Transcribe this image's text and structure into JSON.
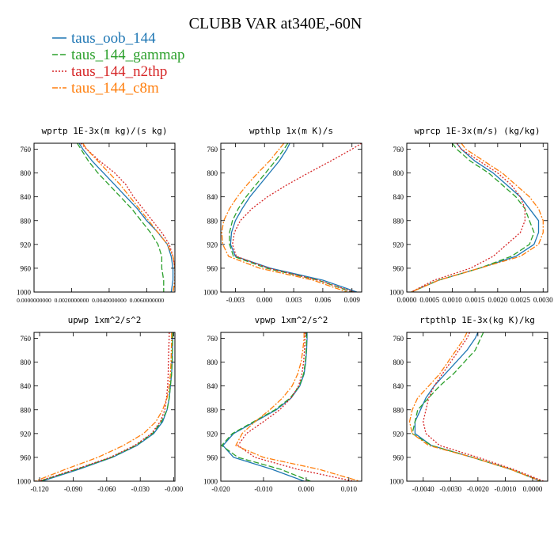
{
  "figure": {
    "title": "CLUBB VAR at340E,-60N"
  },
  "legend": {
    "entries": [
      {
        "label": "taus_oob_144",
        "color": "#1f77b4",
        "dash": "solid"
      },
      {
        "label": "taus_144_gammap",
        "color": "#2ca02c",
        "dash": "dash"
      },
      {
        "label": "taus_144_n2thp",
        "color": "#d62728",
        "dash": "dot"
      },
      {
        "label": "taus_144_c8m",
        "color": "#ff7f0e",
        "dash": "dashdot"
      }
    ]
  },
  "chart_data": [
    {
      "type": "line",
      "title": "wprtp  1E-3x(m kg)/(s kg)",
      "xlim": [
        0,
        0.0075
      ],
      "ylim": [
        1000,
        750
      ],
      "xticks": [
        0,
        0.002,
        0.004,
        0.006
      ],
      "xtick_labels": [
        "0.0000000000",
        "0.0020000000",
        "0.0040000000",
        "0.0060000000"
      ],
      "yticks": [
        760,
        800,
        840,
        880,
        920,
        960,
        1000
      ],
      "ytick_labels": [
        "760",
        "800",
        "840",
        "880",
        "920",
        "960",
        "1000"
      ],
      "y": [
        750,
        760,
        780,
        800,
        820,
        840,
        860,
        880,
        900,
        920,
        940,
        960,
        980,
        1000
      ],
      "series": [
        {
          "name": "taus_oob_144",
          "x": [
            0.0024,
            0.0026,
            0.0031,
            0.0037,
            0.0043,
            0.0049,
            0.0055,
            0.006,
            0.0066,
            0.0071,
            0.0073,
            0.0074,
            0.0074,
            0.0073
          ]
        },
        {
          "name": "taus_144_gammap",
          "x": [
            0.0023,
            0.0025,
            0.0029,
            0.0034,
            0.004,
            0.0046,
            0.0052,
            0.0057,
            0.0062,
            0.0066,
            0.0068,
            0.0068,
            0.0069,
            0.0069
          ]
        },
        {
          "name": "taus_144_n2thp",
          "x": [
            0.0025,
            0.0028,
            0.0035,
            0.0043,
            0.0049,
            0.0053,
            0.0058,
            0.0063,
            0.0068,
            0.0072,
            0.0074,
            0.0075,
            0.0075,
            0.0074
          ]
        },
        {
          "name": "taus_144_c8m",
          "x": [
            0.0026,
            0.0028,
            0.0034,
            0.004,
            0.0046,
            0.0051,
            0.0056,
            0.0061,
            0.0066,
            0.0071,
            0.0074,
            0.0075,
            0.0075,
            0.0074
          ]
        }
      ]
    },
    {
      "type": "line",
      "title": "wpthlp  1x(m K)/s",
      "xlim": [
        -0.0045,
        0.01
      ],
      "ylim": [
        1000,
        750
      ],
      "xticks": [
        -0.003,
        0,
        0.003,
        0.006,
        0.009
      ],
      "xtick_labels": [
        "-0.003",
        "0.000",
        "0.003",
        "0.006",
        "0.009"
      ],
      "yticks": [
        760,
        800,
        840,
        880,
        920,
        960,
        1000
      ],
      "ytick_labels": [
        "760",
        "800",
        "840",
        "880",
        "920",
        "960",
        "1000"
      ],
      "y": [
        750,
        760,
        780,
        800,
        820,
        840,
        860,
        880,
        900,
        920,
        940,
        960,
        980,
        1000
      ],
      "series": [
        {
          "name": "taus_oob_144",
          "x": [
            0.0026,
            0.0023,
            0.0015,
            0.0005,
            -0.0005,
            -0.0015,
            -0.0023,
            -0.003,
            -0.0034,
            -0.0035,
            -0.003,
            0.0006,
            0.006,
            0.0095
          ]
        },
        {
          "name": "taus_144_gammap",
          "x": [
            0.0024,
            0.002,
            0.0011,
            0.0001,
            -0.0009,
            -0.0019,
            -0.0027,
            -0.0033,
            -0.0036,
            -0.0036,
            -0.0032,
            0.0002,
            0.0055,
            0.009
          ]
        },
        {
          "name": "taus_144_n2thp",
          "x": [
            0.01,
            0.009,
            0.0068,
            0.0045,
            0.0023,
            0.0003,
            -0.0013,
            -0.0025,
            -0.0031,
            -0.0033,
            -0.0029,
            0.0004,
            0.0055,
            0.0092
          ]
        },
        {
          "name": "taus_144_c8m",
          "x": [
            0.002,
            0.0015,
            0.0005,
            -0.0007,
            -0.0018,
            -0.0028,
            -0.0036,
            -0.0042,
            -0.0044,
            -0.0043,
            -0.0037,
            -0.0005,
            0.005,
            0.0085
          ]
        }
      ]
    },
    {
      "type": "line",
      "title": "wprcp  1E-3x(m/s) (kg/kg)",
      "xlim": [
        0,
        0.0031
      ],
      "ylim": [
        1000,
        750
      ],
      "xticks": [
        0,
        0.0005,
        0.001,
        0.0015,
        0.002,
        0.0025,
        0.003
      ],
      "xtick_labels": [
        "0.0000",
        "0.0005",
        "0.0010",
        "0.0015",
        "0.0020",
        "0.0025",
        "0.0030"
      ],
      "yticks": [
        760,
        800,
        840,
        880,
        920,
        960,
        1000
      ],
      "ytick_labels": [
        "760",
        "800",
        "840",
        "880",
        "920",
        "960",
        "1000"
      ],
      "y": [
        750,
        760,
        780,
        800,
        820,
        840,
        860,
        880,
        900,
        920,
        940,
        960,
        980,
        1000
      ],
      "series": [
        {
          "name": "taus_oob_144",
          "x": [
            0.0011,
            0.0012,
            0.0015,
            0.0019,
            0.0022,
            0.0025,
            0.0027,
            0.0029,
            0.0029,
            0.0028,
            0.0024,
            0.0016,
            0.0007,
            0.0001
          ]
        },
        {
          "name": "taus_144_gammap",
          "x": [
            0.001,
            0.0011,
            0.0014,
            0.0018,
            0.0021,
            0.0024,
            0.0026,
            0.0027,
            0.0028,
            0.0027,
            0.0023,
            0.0016,
            0.0007,
            0.0001
          ]
        },
        {
          "name": "taus_144_n2thp",
          "x": [
            0.0011,
            0.0012,
            0.0016,
            0.002,
            0.0023,
            0.0025,
            0.0026,
            0.0026,
            0.0025,
            0.0022,
            0.0019,
            0.0014,
            0.0006,
            0.0001
          ]
        },
        {
          "name": "taus_144_c8m",
          "x": [
            0.0012,
            0.0013,
            0.0017,
            0.0021,
            0.0024,
            0.0027,
            0.0029,
            0.003,
            0.003,
            0.0029,
            0.0025,
            0.0016,
            0.0007,
            0.0001
          ]
        }
      ]
    },
    {
      "type": "line",
      "title": "upwp  1xm^2/s^2",
      "xlim": [
        -0.125,
        0.001
      ],
      "ylim": [
        1000,
        750
      ],
      "xticks": [
        -0.12,
        -0.09,
        -0.06,
        -0.03,
        0
      ],
      "xtick_labels": [
        "-0.120",
        "-0.090",
        "-0.060",
        "-0.030",
        "-0.000"
      ],
      "yticks": [
        760,
        800,
        840,
        880,
        920,
        960,
        1000
      ],
      "ytick_labels": [
        "760",
        "800",
        "840",
        "880",
        "920",
        "960",
        "1000"
      ],
      "y": [
        750,
        760,
        780,
        800,
        820,
        840,
        860,
        880,
        900,
        920,
        940,
        960,
        980,
        1000
      ],
      "series": [
        {
          "name": "taus_oob_144",
          "x": [
            -0.001,
            -0.001,
            -0.0012,
            -0.0015,
            -0.002,
            -0.003,
            -0.004,
            -0.006,
            -0.01,
            -0.018,
            -0.033,
            -0.055,
            -0.085,
            -0.118
          ]
        },
        {
          "name": "taus_144_gammap",
          "x": [
            -0.001,
            -0.001,
            -0.0012,
            -0.0015,
            -0.002,
            -0.003,
            -0.004,
            -0.006,
            -0.011,
            -0.019,
            -0.034,
            -0.056,
            -0.087,
            -0.12
          ]
        },
        {
          "name": "taus_144_n2thp",
          "x": [
            -0.004,
            -0.0042,
            -0.0045,
            -0.0048,
            -0.005,
            -0.0055,
            -0.0065,
            -0.008,
            -0.012,
            -0.02,
            -0.035,
            -0.057,
            -0.088,
            -0.121
          ]
        },
        {
          "name": "taus_144_c8m",
          "x": [
            -0.002,
            -0.002,
            -0.0022,
            -0.0025,
            -0.003,
            -0.004,
            -0.006,
            -0.01,
            -0.016,
            -0.027,
            -0.045,
            -0.068,
            -0.097,
            -0.124
          ]
        }
      ]
    },
    {
      "type": "line",
      "title": "vpwp  1xm^2/s^2",
      "xlim": [
        -0.02,
        0.013
      ],
      "ylim": [
        1000,
        750
      ],
      "xticks": [
        -0.02,
        -0.01,
        0,
        0.01
      ],
      "xtick_labels": [
        "-0.020",
        "-0.010",
        "0.000",
        "0.010"
      ],
      "yticks": [
        760,
        800,
        840,
        880,
        920,
        960,
        1000
      ],
      "ytick_labels": [
        "760",
        "800",
        "840",
        "880",
        "920",
        "960",
        "1000"
      ],
      "y": [
        750,
        760,
        780,
        800,
        820,
        840,
        860,
        880,
        900,
        920,
        940,
        960,
        980,
        1000
      ],
      "series": [
        {
          "name": "taus_oob_144",
          "x": [
            0.0002,
            0.0002,
            0.0001,
            -0.0001,
            -0.0005,
            -0.0015,
            -0.0035,
            -0.007,
            -0.012,
            -0.017,
            -0.0195,
            -0.017,
            -0.008,
            -0.0005
          ]
        },
        {
          "name": "taus_144_gammap",
          "x": [
            0.0001,
            0.0001,
            0.0,
            -0.0002,
            -0.0006,
            -0.0016,
            -0.0037,
            -0.0073,
            -0.0123,
            -0.0173,
            -0.0198,
            -0.016,
            -0.006,
            0.001
          ]
        },
        {
          "name": "taus_144_n2thp",
          "x": [
            -0.0003,
            -0.0003,
            -0.0004,
            -0.0006,
            -0.001,
            -0.0018,
            -0.0035,
            -0.0062,
            -0.01,
            -0.014,
            -0.016,
            -0.012,
            -0.002,
            0.011
          ]
        },
        {
          "name": "taus_144_c8m",
          "x": [
            -0.0005,
            -0.0005,
            -0.0008,
            -0.0012,
            -0.002,
            -0.0033,
            -0.0055,
            -0.0085,
            -0.012,
            -0.015,
            -0.0165,
            -0.01,
            0.003,
            0.0125
          ]
        }
      ]
    },
    {
      "type": "line",
      "title": "rtpthlp  1E-3x(kg K)/kg",
      "xlim": [
        -0.0046,
        0.00055
      ],
      "ylim": [
        1000,
        750
      ],
      "xticks": [
        -0.004,
        -0.003,
        -0.002,
        -0.001,
        0
      ],
      "xtick_labels": [
        "-0.0040",
        "-0.0030",
        "-0.0020",
        "-0.0010",
        "0.0000"
      ],
      "yticks": [
        760,
        800,
        840,
        880,
        920,
        960,
        1000
      ],
      "ytick_labels": [
        "760",
        "800",
        "840",
        "880",
        "920",
        "960",
        "1000"
      ],
      "y": [
        750,
        760,
        780,
        800,
        820,
        840,
        860,
        880,
        900,
        920,
        940,
        960,
        980,
        1000
      ],
      "series": [
        {
          "name": "taus_oob_144",
          "x": [
            -0.002,
            -0.0021,
            -0.0024,
            -0.0028,
            -0.0032,
            -0.0036,
            -0.0039,
            -0.0041,
            -0.0043,
            -0.0043,
            -0.0037,
            -0.0022,
            -0.0008,
            0.0003
          ]
        },
        {
          "name": "taus_144_gammap",
          "x": [
            -0.0018,
            -0.0019,
            -0.0021,
            -0.0025,
            -0.0029,
            -0.0034,
            -0.0038,
            -0.0042,
            -0.0043,
            -0.0044,
            -0.0037,
            -0.0022,
            -0.0008,
            0.0003
          ]
        },
        {
          "name": "taus_144_n2thp",
          "x": [
            -0.0023,
            -0.0024,
            -0.0027,
            -0.003,
            -0.0033,
            -0.0036,
            -0.0038,
            -0.0039,
            -0.004,
            -0.0039,
            -0.0034,
            -0.002,
            -0.0007,
            0.0004
          ]
        },
        {
          "name": "taus_144_c8m",
          "x": [
            -0.0024,
            -0.0025,
            -0.0028,
            -0.0031,
            -0.0034,
            -0.0038,
            -0.0042,
            -0.0044,
            -0.0045,
            -0.0044,
            -0.0038,
            -0.0022,
            -0.0008,
            0.0003
          ]
        }
      ]
    }
  ]
}
